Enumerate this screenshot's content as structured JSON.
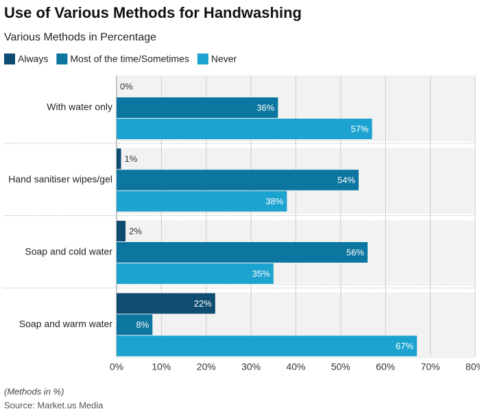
{
  "chart_data": {
    "type": "hbar",
    "title": "Use of Various Methods for Handwashing",
    "subtitle": "Various Methods in Percentage",
    "categories": [
      "With water only",
      "Hand sanitiser wipes/gel",
      "Soap and cold water",
      "Soap and warm water"
    ],
    "series": [
      {
        "name": "Always",
        "color": "#0e4c72",
        "values": [
          0,
          1,
          2,
          22
        ],
        "value_labels": [
          "0%",
          "1%",
          "2%",
          "22%"
        ]
      },
      {
        "name": "Most of the time/Sometimes",
        "color": "#0c76a0",
        "values": [
          36,
          54,
          56,
          8
        ],
        "value_labels": [
          "36%",
          "54%",
          "56%",
          "8%"
        ]
      },
      {
        "name": "Never",
        "color": "#1ca3d0",
        "values": [
          57,
          38,
          35,
          67
        ],
        "value_labels": [
          "57%",
          "38%",
          "35%",
          "67%"
        ]
      }
    ],
    "xlim": [
      0,
      80
    ],
    "xticks": [
      {
        "value": 0,
        "label": "0%"
      },
      {
        "value": 10,
        "label": "10%"
      },
      {
        "value": 20,
        "label": "20%"
      },
      {
        "value": 30,
        "label": "30%"
      },
      {
        "value": 40,
        "label": "40%"
      },
      {
        "value": 50,
        "label": "50%"
      },
      {
        "value": 60,
        "label": "60%"
      },
      {
        "value": 70,
        "label": "70%"
      },
      {
        "value": 80,
        "label": "80%"
      }
    ],
    "grid": true,
    "note": "(Methods in %)",
    "source": "Source: Market.us Media"
  }
}
